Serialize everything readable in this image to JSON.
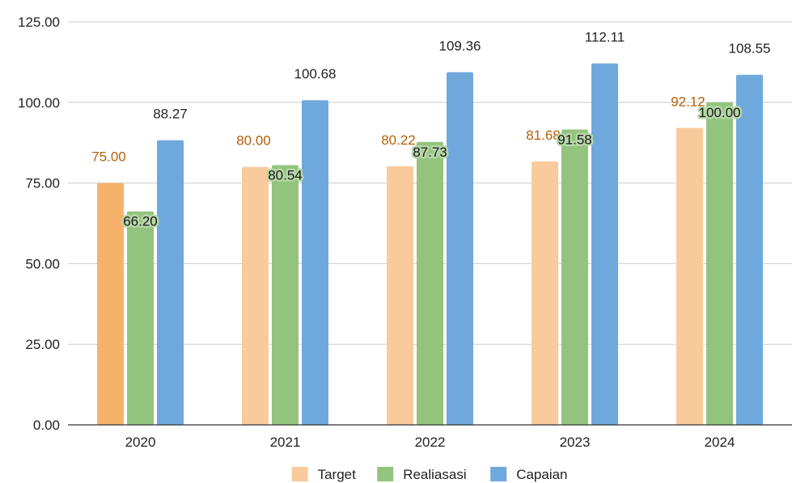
{
  "chart_data": {
    "type": "bar",
    "categories": [
      "2020",
      "2021",
      "2022",
      "2023",
      "2024"
    ],
    "series": [
      {
        "name": "Target",
        "values": [
          75.0,
          80.0,
          80.22,
          81.68,
          92.12
        ],
        "labels": [
          "75.00",
          "80.00",
          "80.22",
          "81.68",
          "92.12"
        ],
        "color": "#f9cb9c",
        "first_bar_color": "#f6b26b",
        "label_color": "#b45f06"
      },
      {
        "name": "Realiasasi",
        "values": [
          66.2,
          80.54,
          87.73,
          91.58,
          100.0
        ],
        "labels": [
          "66.20",
          "80.54",
          "87.73",
          "91.58",
          "100.00"
        ],
        "color": "#93c47d",
        "label_color": "#1a1a1a",
        "label_halo": "#b6d7a8"
      },
      {
        "name": "Capaian",
        "values": [
          88.27,
          100.68,
          109.36,
          112.11,
          108.55
        ],
        "labels": [
          "88.27",
          "100.68",
          "109.36",
          "112.11",
          "108.55"
        ],
        "color": "#6fa8dc",
        "label_color": "#222222"
      }
    ],
    "y_ticks": [
      "0.00",
      "25.00",
      "50.00",
      "75.00",
      "100.00",
      "125.00"
    ],
    "ylim": [
      0,
      125
    ],
    "grid": true,
    "legend_position": "bottom"
  }
}
